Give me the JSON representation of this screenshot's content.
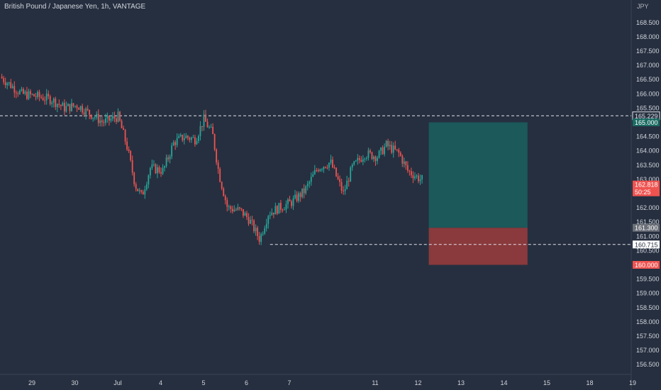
{
  "header": {
    "symbol_title": "British Pound / Japanese Yen, 1h, VANTAGE",
    "currency": "JPY"
  },
  "colors": {
    "background": "#262f3f",
    "up": "#26a69a",
    "down": "#ef5350",
    "target_zone": "#1b5e5e",
    "stop_zone": "#963c3c",
    "axis_text": "#d1d4dc"
  },
  "chart_data": {
    "type": "candlestick",
    "ylim": [
      156.0,
      169.0
    ],
    "y_ticks": [
      "156.500",
      "157.000",
      "157.500",
      "158.000",
      "158.500",
      "159.000",
      "159.500",
      "160.000",
      "160.500",
      "161.000",
      "161.500",
      "162.000",
      "162.500",
      "163.000",
      "163.500",
      "164.000",
      "164.500",
      "165.000",
      "165.500",
      "166.000",
      "166.500",
      "167.000",
      "167.500",
      "168.000",
      "168.500"
    ],
    "x_ticks": [
      {
        "label": "29",
        "day": 0
      },
      {
        "label": "30",
        "day": 1
      },
      {
        "label": "Jul",
        "day": 2
      },
      {
        "label": "4",
        "day": 3
      },
      {
        "label": "5",
        "day": 4
      },
      {
        "label": "6",
        "day": 5
      },
      {
        "label": "7",
        "day": 6
      },
      {
        "label": "11",
        "day": 8
      },
      {
        "label": "12",
        "day": 9
      },
      {
        "label": "13",
        "day": 10
      },
      {
        "label": "14",
        "day": 11
      },
      {
        "label": "15",
        "day": 12
      },
      {
        "label": "18",
        "day": 13
      },
      {
        "label": "19",
        "day": 14
      }
    ],
    "price_path": [
      {
        "day": -0.7,
        "price": 166.6
      },
      {
        "day": -0.45,
        "price": 166.3
      },
      {
        "day": -0.2,
        "price": 166.0
      },
      {
        "day": 0.2,
        "price": 165.9
      },
      {
        "day": 0.5,
        "price": 165.8
      },
      {
        "day": 0.8,
        "price": 165.5
      },
      {
        "day": 1.1,
        "price": 165.6
      },
      {
        "day": 1.4,
        "price": 165.3
      },
      {
        "day": 1.7,
        "price": 165.0
      },
      {
        "day": 2.05,
        "price": 165.2
      },
      {
        "day": 2.25,
        "price": 164.2
      },
      {
        "day": 2.45,
        "price": 162.8
      },
      {
        "day": 2.6,
        "price": 162.4
      },
      {
        "day": 2.8,
        "price": 163.4
      },
      {
        "day": 3.1,
        "price": 163.3
      },
      {
        "day": 3.35,
        "price": 164.3
      },
      {
        "day": 3.6,
        "price": 164.5
      },
      {
        "day": 3.85,
        "price": 164.4
      },
      {
        "day": 4.05,
        "price": 165.1
      },
      {
        "day": 4.25,
        "price": 164.6
      },
      {
        "day": 4.4,
        "price": 163.2
      },
      {
        "day": 4.6,
        "price": 162.0
      },
      {
        "day": 4.9,
        "price": 161.9
      },
      {
        "day": 5.1,
        "price": 161.6
      },
      {
        "day": 5.35,
        "price": 160.9
      },
      {
        "day": 5.55,
        "price": 161.8
      },
      {
        "day": 5.8,
        "price": 162.0
      },
      {
        "day": 6.1,
        "price": 162.2
      },
      {
        "day": 6.4,
        "price": 162.6
      },
      {
        "day": 6.7,
        "price": 163.4
      },
      {
        "day": 7.0,
        "price": 163.6
      },
      {
        "day": 7.3,
        "price": 162.5
      },
      {
        "day": 7.5,
        "price": 163.4
      },
      {
        "day": 7.8,
        "price": 163.9
      },
      {
        "day": 8.1,
        "price": 163.8
      },
      {
        "day": 8.3,
        "price": 164.2
      },
      {
        "day": 8.6,
        "price": 163.9
      },
      {
        "day": 8.8,
        "price": 163.3
      },
      {
        "day": 9.1,
        "price": 163.0
      }
    ],
    "levels": {
      "high_line": "165.229",
      "low_line": "160.715",
      "target": "165.000",
      "entry": "161.300",
      "stop": "160.000",
      "current_price": "162.818",
      "countdown": "50:25"
    },
    "position_tool": {
      "start_day": 9.25,
      "end_day": 11.55,
      "target": 165.0,
      "entry": 161.3,
      "stop": 160.0
    }
  }
}
